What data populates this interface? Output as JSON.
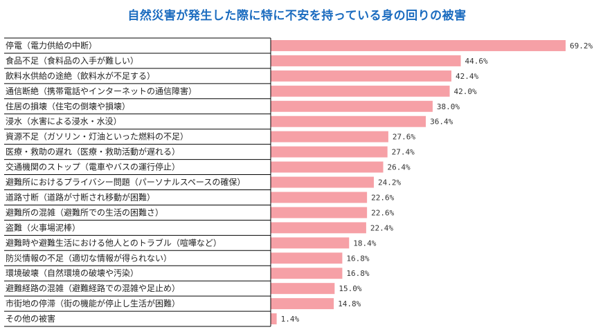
{
  "chart_data": {
    "type": "bar",
    "orientation": "horizontal",
    "title": "自然災害が発生した際に特に不安を持っている身の回りの被害",
    "value_suffix": "%",
    "bar_color": "#f6a0a6",
    "title_color": "#1a6bbf",
    "categories": [
      "停電（電力供給の中断）",
      "食品不足（食料品の入手が難しい）",
      "飲料水供給の途絶（飲料水が不足する）",
      "通信断絶（携帯電話やインターネットの通信障害）",
      "住居の損壊（住宅の倒壊や損壊）",
      "浸水（水害による浸水・水没）",
      "資源不足（ガソリン・灯油といった燃料の不足）",
      "医療・救助の遅れ（医療・救助活動が遅れる）",
      "交通機関のストップ（電車やバスの運行停止）",
      "避難所におけるプライバシー問題（パーソナルスペースの確保）",
      "道路寸断（道路が寸断され移動が困難）",
      "避難所の混雑（避難所での生活の困難さ）",
      "盗難（火事場泥棒）",
      "避難時や避難生活における他人とのトラブル（喧嘩など）",
      "防災情報の不足（適切な情報が得られない）",
      "環境破壊（自然環境の破壊や汚染）",
      "避難経路の混雑（避難経路での混雑や足止め）",
      "市街地の停滞（街の機能が停止し生活が困難）",
      "その他の被害"
    ],
    "values": [
      69.2,
      44.6,
      42.4,
      42.0,
      38.0,
      36.4,
      27.6,
      27.4,
      26.4,
      24.2,
      22.6,
      22.6,
      22.4,
      18.4,
      16.8,
      16.8,
      15.0,
      14.8,
      1.4
    ],
    "value_labels": [
      "69.2%",
      "44.6%",
      "42.4%",
      "42.0%",
      "38.0%",
      "36.4%",
      "27.6%",
      "27.4%",
      "26.4%",
      "24.2%",
      "22.6%",
      "22.6%",
      "22.4%",
      "18.4%",
      "16.8%",
      "16.8%",
      "15.0%",
      "14.8%",
      "1.4%"
    ]
  }
}
